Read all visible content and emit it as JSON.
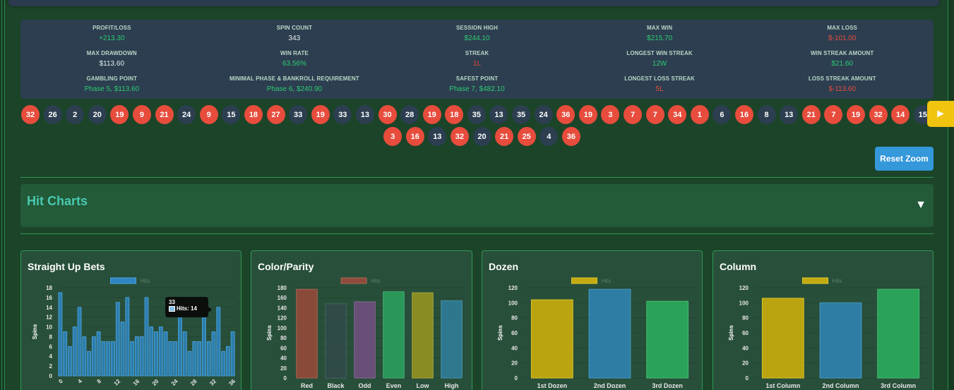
{
  "stats": [
    {
      "label": "PROFIT/LOSS",
      "value": "+213.30",
      "tone": "pos"
    },
    {
      "label": "SPIN COUNT",
      "value": "343",
      "tone": "neutral"
    },
    {
      "label": "SESSION HIGH",
      "value": "$244.10",
      "tone": "pos"
    },
    {
      "label": "MAX WIN",
      "value": "$215.70",
      "tone": "pos"
    },
    {
      "label": "MAX LOSS",
      "value": "$-101.00",
      "tone": "neg"
    },
    {
      "label": "MAX DRAWDOWN",
      "value": "$113.60",
      "tone": "neutral"
    },
    {
      "label": "WIN RATE",
      "value": "63.56%",
      "tone": "pos"
    },
    {
      "label": "STREAK",
      "value": "1L",
      "tone": "neg"
    },
    {
      "label": "LONGEST WIN STREAK",
      "value": "12W",
      "tone": "pos"
    },
    {
      "label": "WIN STREAK AMOUNT",
      "value": "$21.60",
      "tone": "pos"
    },
    {
      "label": "GAMBLING POINT",
      "value": "Phase 5, $113.60",
      "tone": "pos"
    },
    {
      "label": "MINIMAL PHASE & BANKROLL REQUIREMENT",
      "value": "Phase 6, $240.90",
      "tone": "pos"
    },
    {
      "label": "SAFEST POINT",
      "value": "Phase 7, $482.10",
      "tone": "pos"
    },
    {
      "label": "LONGEST LOSS STREAK",
      "value": "5L",
      "tone": "neg"
    },
    {
      "label": "LOSS STREAK AMOUNT",
      "value": "$-113.60",
      "tone": "neg"
    }
  ],
  "history": {
    "row1": [
      {
        "n": "32",
        "c": "red"
      },
      {
        "n": "26",
        "c": "black"
      },
      {
        "n": "2",
        "c": "black"
      },
      {
        "n": "20",
        "c": "black"
      },
      {
        "n": "19",
        "c": "red"
      },
      {
        "n": "9",
        "c": "red"
      },
      {
        "n": "21",
        "c": "red"
      },
      {
        "n": "24",
        "c": "black"
      },
      {
        "n": "9",
        "c": "red"
      },
      {
        "n": "15",
        "c": "black"
      },
      {
        "n": "18",
        "c": "red"
      },
      {
        "n": "27",
        "c": "red"
      },
      {
        "n": "33",
        "c": "black"
      },
      {
        "n": "19",
        "c": "red"
      },
      {
        "n": "33",
        "c": "black"
      },
      {
        "n": "13",
        "c": "black"
      },
      {
        "n": "30",
        "c": "red"
      },
      {
        "n": "28",
        "c": "black"
      },
      {
        "n": "19",
        "c": "red"
      },
      {
        "n": "18",
        "c": "red"
      },
      {
        "n": "35",
        "c": "black"
      },
      {
        "n": "13",
        "c": "black"
      },
      {
        "n": "35",
        "c": "black"
      },
      {
        "n": "24",
        "c": "black"
      },
      {
        "n": "36",
        "c": "red"
      },
      {
        "n": "19",
        "c": "red"
      },
      {
        "n": "3",
        "c": "red"
      },
      {
        "n": "7",
        "c": "red"
      },
      {
        "n": "7",
        "c": "red"
      },
      {
        "n": "34",
        "c": "red"
      },
      {
        "n": "1",
        "c": "red"
      },
      {
        "n": "6",
        "c": "black"
      },
      {
        "n": "16",
        "c": "red"
      },
      {
        "n": "8",
        "c": "black"
      },
      {
        "n": "13",
        "c": "black"
      },
      {
        "n": "21",
        "c": "red"
      },
      {
        "n": "7",
        "c": "red"
      },
      {
        "n": "19",
        "c": "red"
      },
      {
        "n": "32",
        "c": "red"
      },
      {
        "n": "14",
        "c": "red"
      },
      {
        "n": "15",
        "c": "black"
      }
    ],
    "row2": [
      {
        "n": "3",
        "c": "red"
      },
      {
        "n": "16",
        "c": "red"
      },
      {
        "n": "13",
        "c": "black"
      },
      {
        "n": "32",
        "c": "red"
      },
      {
        "n": "20",
        "c": "black"
      },
      {
        "n": "21",
        "c": "red"
      },
      {
        "n": "25",
        "c": "red"
      },
      {
        "n": "4",
        "c": "black"
      },
      {
        "n": "36",
        "c": "red"
      }
    ],
    "next_icon": "►"
  },
  "reset_zoom_label": "Reset Zoom",
  "section": {
    "title": "Hit Charts",
    "toggle_icon": "▼"
  },
  "tooltip": {
    "title": "33",
    "label": "Hits: 14"
  },
  "chart_data": [
    {
      "type": "bar",
      "title": "Straight Up Bets",
      "legend": "Hits",
      "ylabel": "Spins",
      "xlabel": "",
      "ylim": [
        0,
        18
      ],
      "yticks": [
        0,
        2,
        4,
        6,
        8,
        10,
        12,
        14,
        16,
        18
      ],
      "xtick_labels": [
        "0",
        "4",
        "8",
        "12",
        "16",
        "20",
        "24",
        "28",
        "32",
        "36"
      ],
      "categories": [
        "0",
        "1",
        "2",
        "3",
        "4",
        "5",
        "6",
        "7",
        "8",
        "9",
        "10",
        "11",
        "12",
        "13",
        "14",
        "15",
        "16",
        "17",
        "18",
        "19",
        "20",
        "21",
        "22",
        "23",
        "24",
        "25",
        "26",
        "27",
        "28",
        "29",
        "30",
        "31",
        "32",
        "33",
        "34",
        "35",
        "36"
      ],
      "values": [
        17,
        9,
        6,
        10,
        14,
        8,
        5,
        8,
        9,
        7,
        7,
        7,
        15,
        11,
        16,
        7,
        8,
        8,
        16,
        10,
        9,
        10,
        9,
        7,
        7,
        12,
        9,
        5,
        7,
        7,
        12,
        7,
        9,
        14,
        5,
        6,
        9
      ],
      "colors": [
        "#2e86c1"
      ],
      "highlight_index": 33,
      "highlight_color": "#2e86c1",
      "grid": true,
      "legend_position": "top"
    },
    {
      "type": "bar",
      "title": "Color/Parity",
      "legend": "Hits",
      "ylabel": "Spins",
      "xlabel": "",
      "ylim": [
        0,
        180
      ],
      "yticks": [
        0,
        20,
        40,
        60,
        80,
        100,
        120,
        140,
        160,
        180
      ],
      "categories": [
        "Red",
        "Black",
        "Odd",
        "Even",
        "Low",
        "High"
      ],
      "values": [
        177,
        148,
        152,
        172,
        170,
        154
      ],
      "colors": [
        "#8e4a3a",
        "#2f4a48",
        "#6b4f7a",
        "#2a9a5a",
        "#8e8e22",
        "#2e7a94"
      ],
      "legend_color": "#8e4a3a",
      "grid": true,
      "legend_position": "top"
    },
    {
      "type": "bar",
      "title": "Dozen",
      "legend": "Hits",
      "ylabel": "Spins",
      "xlabel": "",
      "ylim": [
        0,
        120
      ],
      "yticks": [
        0,
        20,
        40,
        60,
        80,
        100,
        120
      ],
      "categories": [
        "1st Dozen",
        "2nd Dozen",
        "3rd Dozen"
      ],
      "values": [
        104,
        118,
        102
      ],
      "colors": [
        "#c2aa0f",
        "#2e80ab",
        "#2aa65a"
      ],
      "legend_color": "#c2aa0f",
      "grid": true,
      "legend_position": "top"
    },
    {
      "type": "bar",
      "title": "Column",
      "legend": "Hits",
      "ylabel": "Spins",
      "xlabel": "",
      "ylim": [
        0,
        120
      ],
      "yticks": [
        0,
        20,
        40,
        60,
        80,
        100,
        120
      ],
      "categories": [
        "1st Column",
        "2nd Column",
        "3rd Column"
      ],
      "values": [
        106,
        100,
        118
      ],
      "colors": [
        "#c2aa0f",
        "#2e80ab",
        "#2aa65a"
      ],
      "legend_color": "#c2aa0f",
      "grid": true,
      "legend_position": "top"
    }
  ]
}
